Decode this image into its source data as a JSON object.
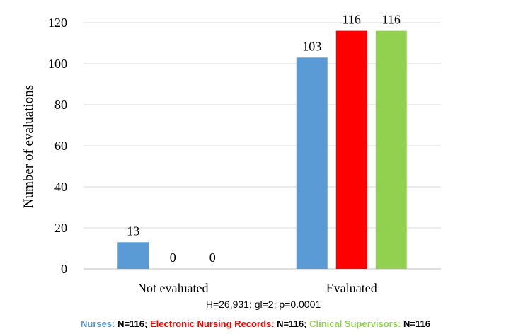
{
  "chart_data": {
    "type": "bar",
    "categories": [
      "Not evaluated",
      "Evaluated"
    ],
    "series": [
      {
        "name": "Nurses",
        "values": [
          13,
          103
        ],
        "color": "#5B9BD5"
      },
      {
        "name": "Electronic Nursing Records",
        "values": [
          0,
          116
        ],
        "color": "#FF0000"
      },
      {
        "name": "Clinical Supervisors",
        "values": [
          0,
          116
        ],
        "color": "#92D050"
      }
    ],
    "title": "",
    "xlabel": "",
    "ylabel": "Number of evaluations",
    "ylim": [
      0,
      120
    ],
    "yticks": [
      0,
      20,
      40,
      60,
      80,
      100,
      120
    ],
    "grid": true,
    "statistic": "H=26,931; gl=2; p=0.0001",
    "legend": {
      "placement": "bottom",
      "entries": [
        {
          "label": "Nurses:",
          "count": "N=116;"
        },
        {
          "label": "Electronic Nursing Records:",
          "count": "N=116;"
        },
        {
          "label": "Clinical Supervisors:",
          "count": "N=116"
        }
      ]
    }
  }
}
